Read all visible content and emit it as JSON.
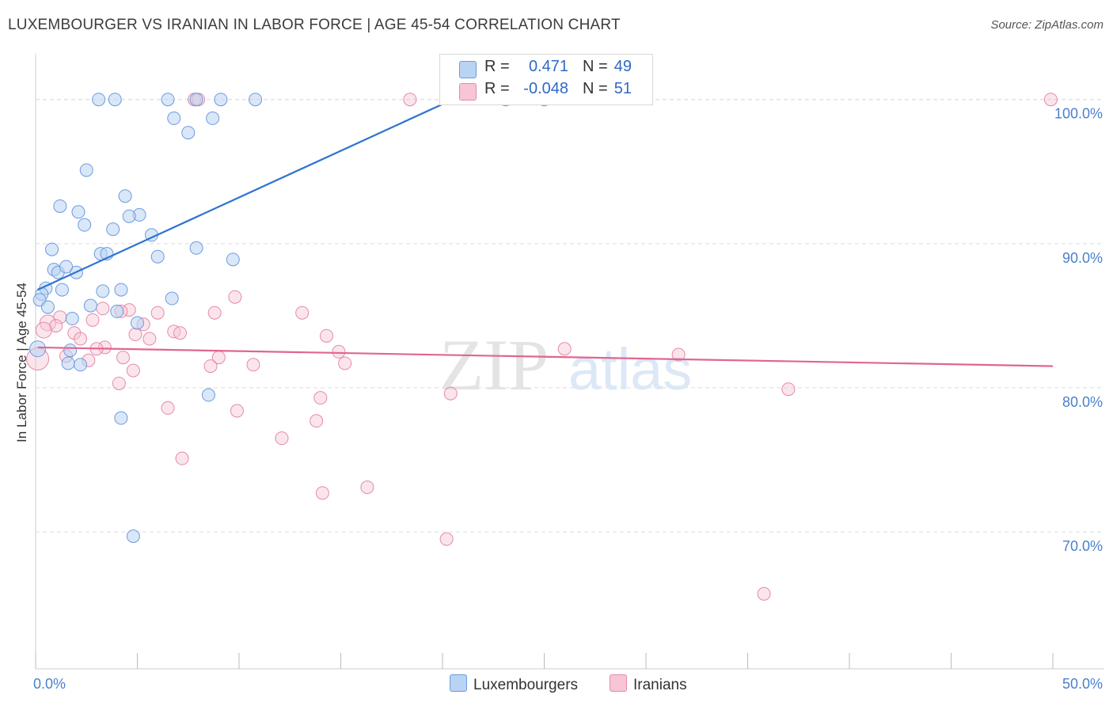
{
  "title": "LUXEMBOURGER VS IRANIAN IN LABOR FORCE | AGE 45-54 CORRELATION CHART",
  "source": "Source: ZipAtlas.com",
  "watermark": {
    "zip": "ZIP",
    "atlas": "atlas"
  },
  "colors": {
    "blue_fill": "#b9d3f3",
    "blue_stroke": "#6d9be0",
    "blue_line": "#2f73d0",
    "pink_fill": "#f7c5d5",
    "pink_stroke": "#e68aa8",
    "pink_line": "#e06690",
    "axis_text": "#4a7fd0",
    "grid": "#dddddd"
  },
  "legend": {
    "rows": [
      {
        "r_label": "R =",
        "r_value": "0.471",
        "n_label": "N =",
        "n_value": "49"
      },
      {
        "r_label": "R =",
        "r_value": "-0.048",
        "n_label": "N =",
        "n_value": "51"
      }
    ]
  },
  "bottom_legend": {
    "series1": "Luxembourgers",
    "series2": "Iranians"
  },
  "chart_data": {
    "type": "scatter",
    "title": "LUXEMBOURGER VS IRANIAN IN LABOR FORCE | AGE 45-54 CORRELATION CHART",
    "xlabel": "",
    "ylabel": "In Labor Force | Age 45-54",
    "xlim": [
      0,
      50
    ],
    "ylim": [
      60.5,
      103.5
    ],
    "x_tick_labels": [
      {
        "value": 0,
        "label": "0.0%"
      },
      {
        "value": 50,
        "label": "50.0%"
      }
    ],
    "y_tick_labels": [
      {
        "value": 100,
        "label": "100.0%"
      },
      {
        "value": 90,
        "label": "90.0%"
      },
      {
        "value": 80,
        "label": "80.0%"
      },
      {
        "value": 70,
        "label": "70.0%"
      }
    ],
    "x_minor_ticks": [
      0,
      5,
      10,
      15,
      20,
      25,
      30,
      35,
      40,
      45,
      50
    ],
    "grid": true,
    "legend_position": "top-center",
    "series": [
      {
        "name": "Luxembourgers",
        "r": 0.471,
        "n": 49,
        "trend": {
          "x0": 0.1,
          "y0": 86.8,
          "x1": 20.5,
          "y1": 100.0
        },
        "points": [
          [
            3.1,
            100
          ],
          [
            3.9,
            100
          ],
          [
            6.5,
            100
          ],
          [
            7.9,
            100
          ],
          [
            9.1,
            100
          ],
          [
            10.8,
            100
          ],
          [
            23.1,
            100
          ],
          [
            25.0,
            100
          ],
          [
            6.8,
            98.7
          ],
          [
            8.7,
            98.7
          ],
          [
            7.5,
            97.7
          ],
          [
            2.5,
            95.1
          ],
          [
            4.4,
            93.3
          ],
          [
            1.2,
            92.6
          ],
          [
            2.1,
            92.2
          ],
          [
            5.1,
            92.0
          ],
          [
            4.6,
            91.9
          ],
          [
            2.4,
            91.3
          ],
          [
            3.8,
            91.0
          ],
          [
            5.7,
            90.6
          ],
          [
            0.8,
            89.6
          ],
          [
            7.9,
            89.7
          ],
          [
            3.2,
            89.3
          ],
          [
            3.5,
            89.3
          ],
          [
            6.0,
            89.1
          ],
          [
            9.7,
            88.9
          ],
          [
            0.9,
            88.2
          ],
          [
            1.1,
            88.0
          ],
          [
            2.0,
            88.0
          ],
          [
            1.5,
            88.4
          ],
          [
            0.5,
            86.9
          ],
          [
            1.3,
            86.8
          ],
          [
            3.3,
            86.7
          ],
          [
            4.2,
            86.8
          ],
          [
            0.3,
            86.5
          ],
          [
            0.2,
            86.1
          ],
          [
            6.7,
            86.2
          ],
          [
            0.6,
            85.6
          ],
          [
            2.7,
            85.7
          ],
          [
            4.0,
            85.3
          ],
          [
            1.8,
            84.8
          ],
          [
            5.0,
            84.5
          ],
          [
            0.1,
            82.7
          ],
          [
            1.7,
            82.6
          ],
          [
            1.6,
            81.7
          ],
          [
            2.2,
            81.6
          ],
          [
            8.5,
            79.5
          ],
          [
            4.2,
            77.9
          ],
          [
            4.8,
            69.7
          ]
        ]
      },
      {
        "name": "Iranians",
        "r": -0.048,
        "n": 51,
        "trend": {
          "x0": 0.1,
          "y0": 82.8,
          "x1": 50.0,
          "y1": 81.5
        },
        "points": [
          [
            7.8,
            100
          ],
          [
            18.4,
            100
          ],
          [
            49.9,
            100
          ],
          [
            9.8,
            86.3
          ],
          [
            3.3,
            85.5
          ],
          [
            4.6,
            85.4
          ],
          [
            8.8,
            85.2
          ],
          [
            13.1,
            85.2
          ],
          [
            6.0,
            85.2
          ],
          [
            1.2,
            84.9
          ],
          [
            2.8,
            84.7
          ],
          [
            0.6,
            84.5
          ],
          [
            5.3,
            84.4
          ],
          [
            1.0,
            84.3
          ],
          [
            0.4,
            84.0
          ],
          [
            1.9,
            83.8
          ],
          [
            4.9,
            83.7
          ],
          [
            6.8,
            83.9
          ],
          [
            7.1,
            83.8
          ],
          [
            14.3,
            83.6
          ],
          [
            2.2,
            83.4
          ],
          [
            5.6,
            83.4
          ],
          [
            3.4,
            82.8
          ],
          [
            3.0,
            82.7
          ],
          [
            14.9,
            82.5
          ],
          [
            26.0,
            82.7
          ],
          [
            31.6,
            82.3
          ],
          [
            1.5,
            82.2
          ],
          [
            4.3,
            82.1
          ],
          [
            9.0,
            82.1
          ],
          [
            2.6,
            81.9
          ],
          [
            0.1,
            82.0
          ],
          [
            8.6,
            81.5
          ],
          [
            10.7,
            81.6
          ],
          [
            15.2,
            81.7
          ],
          [
            4.8,
            81.2
          ],
          [
            4.1,
            80.3
          ],
          [
            20.4,
            79.6
          ],
          [
            37.0,
            79.9
          ],
          [
            14.0,
            79.3
          ],
          [
            6.5,
            78.6
          ],
          [
            9.9,
            78.4
          ],
          [
            13.8,
            77.7
          ],
          [
            12.1,
            76.5
          ],
          [
            7.2,
            75.1
          ],
          [
            16.3,
            73.1
          ],
          [
            14.1,
            72.7
          ],
          [
            20.2,
            69.5
          ],
          [
            35.8,
            65.7
          ],
          [
            8.0,
            100
          ],
          [
            4.2,
            85.3
          ]
        ]
      }
    ]
  }
}
